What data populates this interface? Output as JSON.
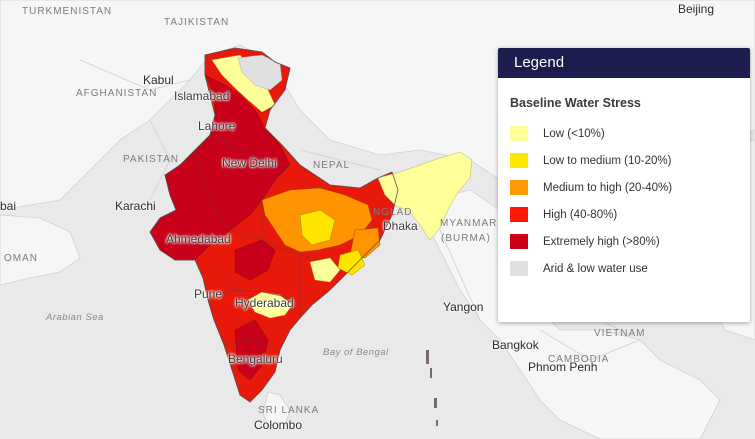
{
  "map": {
    "labels": {
      "turkmenistan": "TURKMENISTAN",
      "tajikistan": "TAJIKISTAN",
      "beijing": "Beijing",
      "kabul": "Kabul",
      "afghanistan": "AFGHANISTAN",
      "islamabad": "Islamabad",
      "lahore": "Lahore",
      "pakistan": "PAKISTAN",
      "new_delhi": "New Delhi",
      "nepal": "NEPAL",
      "karachi": "Karachi",
      "bai": "bai",
      "ahmedabad": "Ahmedabad",
      "oman": "OMAN",
      "bangladesh_partial": "NGLAD",
      "dhaka": "Dhaka",
      "myanmar": "MYANMAR",
      "burma": "(BURMA)",
      "pune": "Pune",
      "hyderabad": "Hyderabad",
      "arabian_sea": "Arabian Sea",
      "yangon": "Yangon",
      "vietnam": "VIETNAM",
      "bay_of_bengal": "Bay of Bengal",
      "bangkok": "Bangkok",
      "cambodia": "CAMBODIA",
      "bengaluru": "Bengaluru",
      "phnom_penh": "Phnom Penh",
      "sri_lanka": "SRI LANKA",
      "colombo": "Colombo"
    }
  },
  "legend": {
    "header": "Legend",
    "title": "Baseline Water Stress",
    "items": [
      {
        "label": "Low (<10%)",
        "color": "#ffff99"
      },
      {
        "label": "Low to medium (10-20%)",
        "color": "#ffe600"
      },
      {
        "label": "Medium to high (20-40%)",
        "color": "#ff9900"
      },
      {
        "label": "High (40-80%)",
        "color": "#ff1900"
      },
      {
        "label": "Extremely high (>80%)",
        "color": "#cc0014"
      },
      {
        "label": "Arid & low water use",
        "color": "#e0e0e0"
      }
    ]
  }
}
